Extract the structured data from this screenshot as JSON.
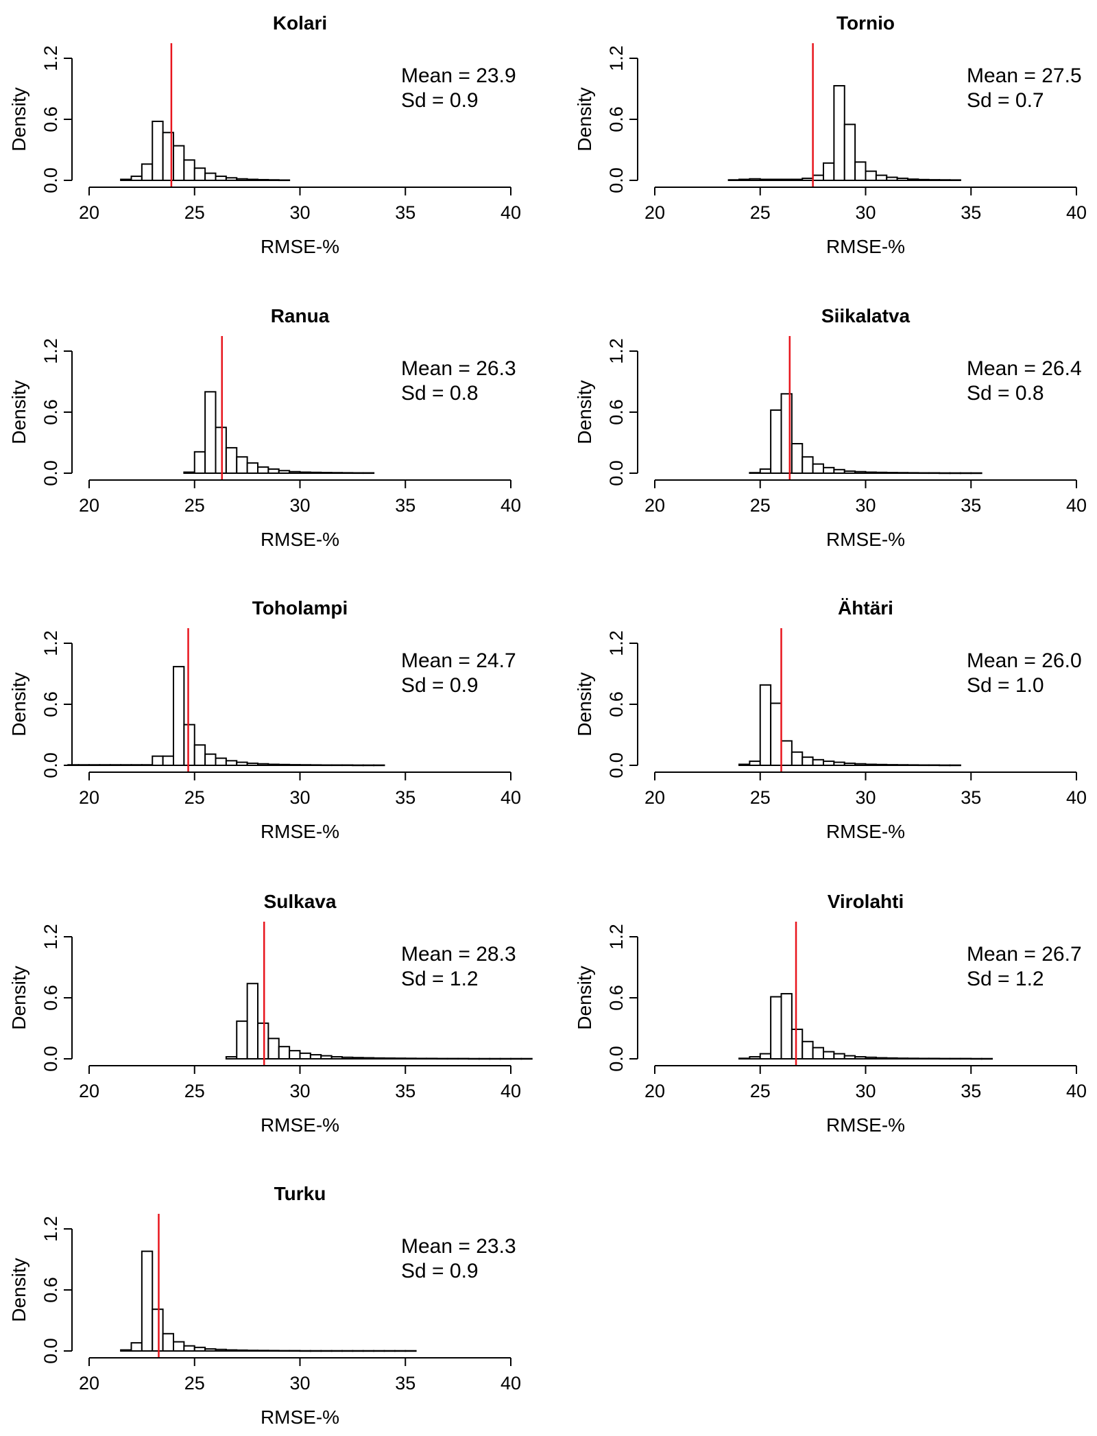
{
  "chart_data": [
    {
      "type": "bar",
      "title": "Kolari",
      "xlabel": "RMSE-%",
      "ylabel": "Density",
      "xlim": [
        20,
        40
      ],
      "ylim": [
        0,
        1.2
      ],
      "xticks": [
        "20",
        "25",
        "30",
        "35",
        "40"
      ],
      "yticks": [
        "0.0",
        "0.6",
        "1.2"
      ],
      "bin_width": 0.5,
      "bin_start": 21.5,
      "values": [
        0.01,
        0.04,
        0.16,
        0.58,
        0.47,
        0.34,
        0.2,
        0.12,
        0.07,
        0.04,
        0.025,
        0.015,
        0.01,
        0.007,
        0.005,
        0.003
      ],
      "mean": 23.9,
      "mean_label": "Mean = 23.9",
      "sd_label": "Sd = 0.9"
    },
    {
      "type": "bar",
      "title": "Tornio",
      "xlabel": "RMSE-%",
      "ylabel": "Density",
      "xlim": [
        20,
        40
      ],
      "ylim": [
        0,
        1.2
      ],
      "xticks": [
        "20",
        "25",
        "30",
        "35",
        "40"
      ],
      "yticks": [
        "0.0",
        "0.6",
        "1.2"
      ],
      "bin_width": 0.5,
      "bin_start": 23.5,
      "values": [
        0.005,
        0.01,
        0.015,
        0.01,
        0.01,
        0.01,
        0.01,
        0.02,
        0.05,
        0.17,
        0.93,
        0.55,
        0.18,
        0.09,
        0.05,
        0.03,
        0.02,
        0.012,
        0.008,
        0.006,
        0.005,
        0.004
      ],
      "mean": 27.5,
      "mean_label": "Mean = 27.5",
      "sd_label": "Sd = 0.7"
    },
    {
      "type": "bar",
      "title": "Ranua",
      "xlabel": "RMSE-%",
      "ylabel": "Density",
      "xlim": [
        20,
        40
      ],
      "ylim": [
        0,
        1.2
      ],
      "xticks": [
        "20",
        "25",
        "30",
        "35",
        "40"
      ],
      "yticks": [
        "0.0",
        "0.6",
        "1.2"
      ],
      "bin_width": 0.5,
      "bin_start": 24.5,
      "values": [
        0.01,
        0.21,
        0.8,
        0.45,
        0.25,
        0.16,
        0.1,
        0.06,
        0.04,
        0.025,
        0.015,
        0.01,
        0.008,
        0.006,
        0.005,
        0.004,
        0.003,
        0.003
      ],
      "mean": 26.3,
      "mean_label": "Mean = 26.3",
      "sd_label": "Sd = 0.8"
    },
    {
      "type": "bar",
      "title": "Siikalatva",
      "xlabel": "RMSE-%",
      "ylabel": "Density",
      "xlim": [
        20,
        40
      ],
      "ylim": [
        0,
        1.2
      ],
      "xticks": [
        "20",
        "25",
        "30",
        "35",
        "40"
      ],
      "yticks": [
        "0.0",
        "0.6",
        "1.2"
      ],
      "bin_width": 0.5,
      "bin_start": 24.5,
      "values": [
        0.005,
        0.04,
        0.62,
        0.78,
        0.29,
        0.16,
        0.09,
        0.055,
        0.035,
        0.02,
        0.015,
        0.01,
        0.008,
        0.006,
        0.005,
        0.004,
        0.003,
        0.003,
        0.002,
        0.002,
        0.002,
        0.002
      ],
      "mean": 26.4,
      "mean_label": "Mean = 26.4",
      "sd_label": "Sd = 0.8"
    },
    {
      "type": "bar",
      "title": "Toholampi",
      "xlabel": "RMSE-%",
      "ylabel": "Density",
      "xlim": [
        20,
        40
      ],
      "ylim": [
        0,
        1.2
      ],
      "xticks": [
        "20",
        "25",
        "30",
        "35",
        "40"
      ],
      "yticks": [
        "0.0",
        "0.6",
        "1.2"
      ],
      "bin_width": 0.5,
      "bin_start": 19,
      "values": [
        0.005,
        0.005,
        0.005,
        0.005,
        0.005,
        0.005,
        0.005,
        0.005,
        0.09,
        0.09,
        0.97,
        0.4,
        0.2,
        0.11,
        0.07,
        0.045,
        0.03,
        0.02,
        0.015,
        0.01,
        0.008,
        0.006,
        0.005,
        0.004,
        0.003,
        0.003,
        0.003,
        0.002,
        0.002,
        0.002
      ],
      "mean": 24.7,
      "mean_label": "Mean = 24.7",
      "sd_label": "Sd = 0.9"
    },
    {
      "type": "bar",
      "title": "Ähtäri",
      "xlabel": "RMSE-%",
      "ylabel": "Density",
      "xlim": [
        20,
        40
      ],
      "ylim": [
        0,
        1.2
      ],
      "xticks": [
        "20",
        "25",
        "30",
        "35",
        "40"
      ],
      "yticks": [
        "0.0",
        "0.6",
        "1.2"
      ],
      "bin_width": 0.5,
      "bin_start": 24,
      "values": [
        0.01,
        0.04,
        0.79,
        0.61,
        0.24,
        0.13,
        0.08,
        0.055,
        0.04,
        0.03,
        0.02,
        0.015,
        0.01,
        0.008,
        0.006,
        0.005,
        0.004,
        0.003,
        0.003,
        0.002,
        0.002
      ],
      "mean": 26.0,
      "mean_label": "Mean = 26.0",
      "sd_label": "Sd = 1.0"
    },
    {
      "type": "bar",
      "title": "Sulkava",
      "xlabel": "RMSE-%",
      "ylabel": "Density",
      "xlim": [
        20,
        40
      ],
      "ylim": [
        0,
        1.2
      ],
      "xticks": [
        "20",
        "25",
        "30",
        "35",
        "40"
      ],
      "yticks": [
        "0.0",
        "0.6",
        "1.2"
      ],
      "bin_width": 0.5,
      "bin_start": 26.5,
      "values": [
        0.02,
        0.37,
        0.74,
        0.35,
        0.2,
        0.12,
        0.08,
        0.055,
        0.04,
        0.03,
        0.02,
        0.015,
        0.012,
        0.01,
        0.008,
        0.007,
        0.006,
        0.005,
        0.004,
        0.004,
        0.003,
        0.003,
        0.003,
        0.002,
        0.002,
        0.002,
        0.002,
        0.002,
        0.002
      ],
      "mean": 28.3,
      "mean_label": "Mean = 28.3",
      "sd_label": "Sd = 1.2"
    },
    {
      "type": "bar",
      "title": "Virolahti",
      "xlabel": "RMSE-%",
      "ylabel": "Density",
      "xlim": [
        20,
        40
      ],
      "ylim": [
        0,
        1.2
      ],
      "xticks": [
        "20",
        "25",
        "30",
        "35",
        "40"
      ],
      "yticks": [
        "0.0",
        "0.6",
        "1.2"
      ],
      "bin_width": 0.5,
      "bin_start": 24,
      "values": [
        0.005,
        0.02,
        0.05,
        0.61,
        0.64,
        0.29,
        0.17,
        0.11,
        0.07,
        0.05,
        0.03,
        0.02,
        0.015,
        0.01,
        0.008,
        0.006,
        0.005,
        0.004,
        0.004,
        0.003,
        0.003,
        0.003,
        0.002,
        0.002
      ],
      "mean": 26.7,
      "mean_label": "Mean = 26.7",
      "sd_label": "Sd = 1.2"
    },
    {
      "type": "bar",
      "title": "Turku",
      "xlabel": "RMSE-%",
      "ylabel": "Density",
      "xlim": [
        20,
        40
      ],
      "ylim": [
        0,
        1.2
      ],
      "xticks": [
        "20",
        "25",
        "30",
        "35",
        "40"
      ],
      "yticks": [
        "0.0",
        "0.6",
        "1.2"
      ],
      "bin_width": 0.5,
      "bin_start": 21.5,
      "values": [
        0.01,
        0.08,
        0.98,
        0.41,
        0.17,
        0.09,
        0.05,
        0.035,
        0.02,
        0.015,
        0.01,
        0.008,
        0.006,
        0.005,
        0.004,
        0.003,
        0.003,
        0.002,
        0.002,
        0.002,
        0.002,
        0.002,
        0.002,
        0.002,
        0.002,
        0.002,
        0.002,
        0.002
      ],
      "mean": 23.3,
      "mean_label": "Mean = 23.3",
      "sd_label": "Sd = 0.9"
    }
  ],
  "colors": {
    "mean_line": "#e8141c",
    "bars_stroke": "#000000",
    "bars_fill": "#ffffff"
  }
}
